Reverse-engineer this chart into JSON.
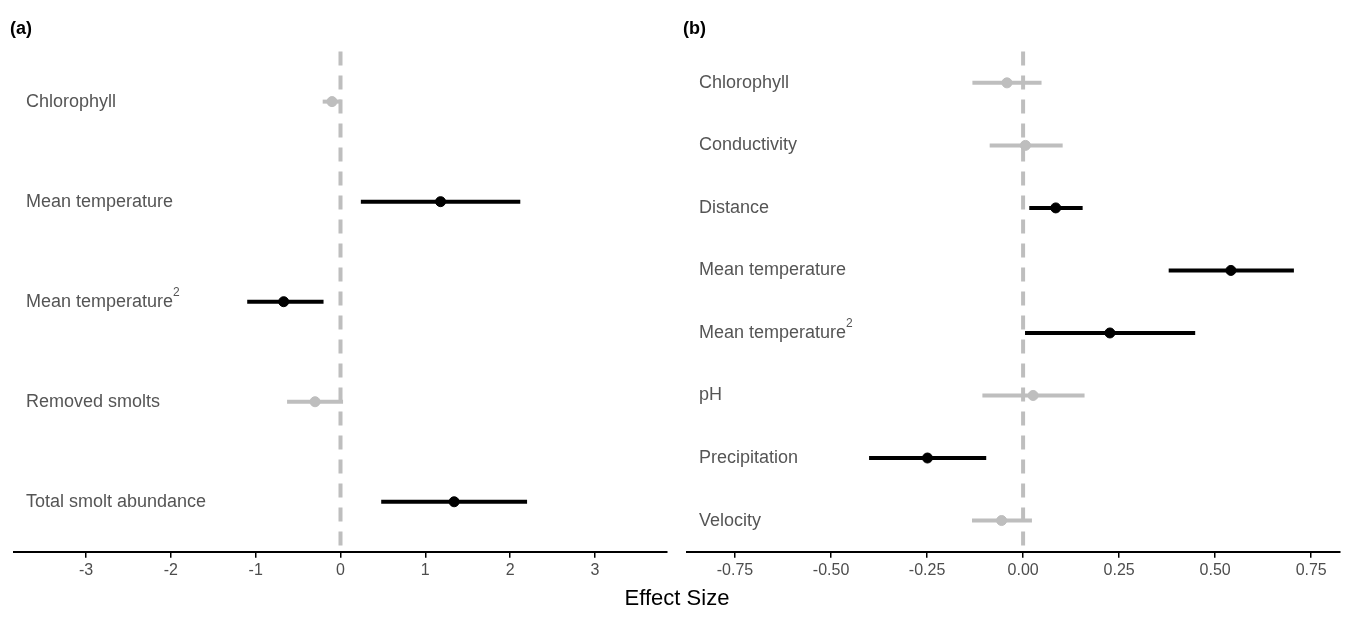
{
  "chart_data": [
    {
      "type": "scatter",
      "title": "(a)",
      "xlabel": "Effect Size",
      "orientation": "horizontal",
      "marker": "circle",
      "categories": [
        "Chlorophyll",
        "Mean temperature",
        "Mean temperature$^{2}$",
        "Removed smolts",
        "Total smolt abundance"
      ],
      "values": [
        -0.1,
        1.18,
        -0.67,
        -0.3,
        1.34
      ],
      "errors": [
        [
          -0.21,
          0.01
        ],
        [
          0.24,
          2.12
        ],
        [
          -1.1,
          -0.2
        ],
        [
          -0.63,
          0.03
        ],
        [
          0.48,
          2.2
        ]
      ],
      "colors": [
        "#bebebe",
        "#000000",
        "#000000",
        "#bebebe",
        "#000000"
      ],
      "xlim": [
        -3.85,
        3.85
      ],
      "xticks": [
        -3,
        -2,
        -1,
        0,
        1,
        2,
        3
      ],
      "ref_lines": [
        {
          "axis": "x",
          "value": 0,
          "color": "#bebebe",
          "line_style": "dashed"
        }
      ]
    },
    {
      "type": "scatter",
      "title": "(b)",
      "orientation": "horizontal",
      "marker": "circle",
      "categories": [
        "Chlorophyll",
        "Conductivity",
        "Distance",
        "Mean temperature",
        "Mean temperature$^{2}$",
        "pH",
        "Precipitation",
        "Velocity"
      ],
      "values": [
        -0.042,
        0.006,
        0.085,
        0.541,
        0.226,
        0.026,
        -0.249,
        -0.056
      ],
      "errors": [
        [
          -0.132,
          0.048
        ],
        [
          -0.087,
          0.103
        ],
        [
          0.016,
          0.155
        ],
        [
          0.379,
          0.705
        ],
        [
          0.005,
          0.448
        ],
        [
          -0.106,
          0.16
        ],
        [
          -0.401,
          -0.096
        ],
        [
          -0.133,
          0.023
        ]
      ],
      "colors": [
        "#bebebe",
        "#bebebe",
        "#000000",
        "#000000",
        "#000000",
        "#bebebe",
        "#000000",
        "#bebebe"
      ],
      "xlim": [
        -0.875,
        0.825
      ],
      "xticks": [
        {
          "value": -0.75,
          "label": "-0.75"
        },
        {
          "value": -0.5,
          "label": "-0.50"
        },
        {
          "value": -0.25,
          "label": "-0.25"
        },
        {
          "value": 0,
          "label": "0.00"
        },
        {
          "value": 0.25,
          "label": "0.25"
        },
        {
          "value": 0.5,
          "label": "0.50"
        },
        {
          "value": 0.75,
          "label": "0.75"
        }
      ],
      "ref_lines": [
        {
          "axis": "x",
          "value": 0,
          "color": "#bebebe",
          "line_style": "dashed"
        }
      ]
    }
  ]
}
